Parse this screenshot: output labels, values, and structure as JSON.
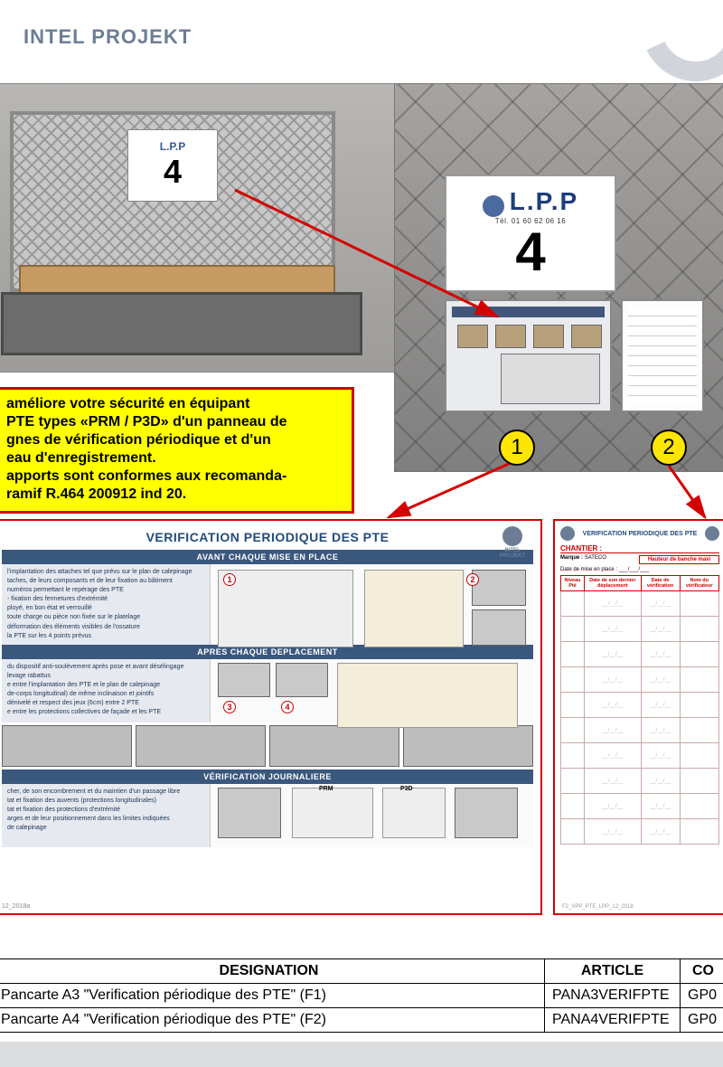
{
  "colors": {
    "brand_text": "#6b7e96",
    "accent_blue": "#3a577e",
    "accent_red": "#d40000",
    "highlight_yellow": "#ffff00",
    "marker_bg": "#ffe600"
  },
  "header": {
    "title": "INTEL PROJEKT",
    "title_color": "#6b7e96"
  },
  "photos": {
    "label_small_brand": "L.P.P",
    "label_small_number": "4",
    "label_big_brand": "L.P.P",
    "label_big_tel": "Tél. 01 60 62 06 16",
    "label_big_number": "4"
  },
  "markers": {
    "m1": "1",
    "m2": "2"
  },
  "info_box": {
    "l1": "améliore votre sécurité en équipant",
    "l2": "PTE types «PRM / P3D» d'un panneau de",
    "l3": "gnes de vérification périodique et d'un",
    "l4": "eau d'enregistrement.",
    "l5": "apports sont conformes aux recomanda-",
    "l6": "ramif R.464 200912 ind 20."
  },
  "doc1": {
    "title": "VERIFICATION PERIODIQUE DES PTE",
    "logo_text": "INTEL PROJEKT",
    "section1": {
      "heading": "AVANT CHAQUE MISE EN PLACE",
      "lines": [
        "l'implantation des attaches tel que prévu sur le plan de calepinage",
        "taches, de leurs composants et de leur fixation au bâtiment",
        "numéros permettant le repérage des PTE",
        "- fixation des fermetures d'extrémité",
        "ployé, en bon état et verrouillé",
        "toute charge ou pièce non fixée sur le platelage",
        "déformation des éléments visibles de l'ossature",
        "la PTE sur les 4 points prévus"
      ]
    },
    "section2": {
      "heading": "APRES CHAQUE DEPLACEMENT",
      "lines": [
        "du dispositif anti-soulèvement après pose et avant désélingage",
        "levage rabattus",
        "e entre l'implantation des PTE et le plan de calepinage",
        "de-corps longitudinal) de même inclinaison et jointifs",
        "dénivelé et respect des jeux (6cm) entre 2 PTE",
        "e entre les protections collectives de façade et les PTE"
      ]
    },
    "section3": {
      "heading": "VÉRIFICATION JOURNALIERE",
      "lines": [
        "cher, de son encombrement et du maintien d'un passage libre",
        "tat et fixation des auvents (protections longitudinales)",
        "tat et fixation des protections d'extrémité",
        "arges et de leur positionnement dans les limites indiquées",
        "de calepinage"
      ]
    },
    "footer": "12_2018a"
  },
  "doc2": {
    "header_title": "VERIFICATION PERIODIQUE DES PTE",
    "chantier_label": "CHANTIER :",
    "marque_label": "Marque :",
    "marque_value": "SATECO",
    "hauteur_label": "Hauteur de banche maxi",
    "date_label": "Date de mise en place :",
    "columns": [
      "Niveau Pté",
      "Date de son dernier déplacement",
      "Date de vérification",
      "Nom du vérificateur"
    ],
    "rows": 10,
    "sig_placeholder": "__/__/__",
    "footer": "F2_VPP_PTE_LPP_12_2018"
  },
  "bottom_table": {
    "headers": [
      "DESIGNATION",
      "ARTICLE",
      "CO"
    ],
    "rows": [
      {
        "designation": "Pancarte A3 \"Verification périodique des PTE\" (F1)",
        "article": "PANA3VERIFPTE",
        "co": "GP0"
      },
      {
        "designation": "Pancarte A4 \"Verification périodique des PTE\" (F2)",
        "article": "PANA4VERIFPTE",
        "co": "GP0"
      }
    ]
  }
}
